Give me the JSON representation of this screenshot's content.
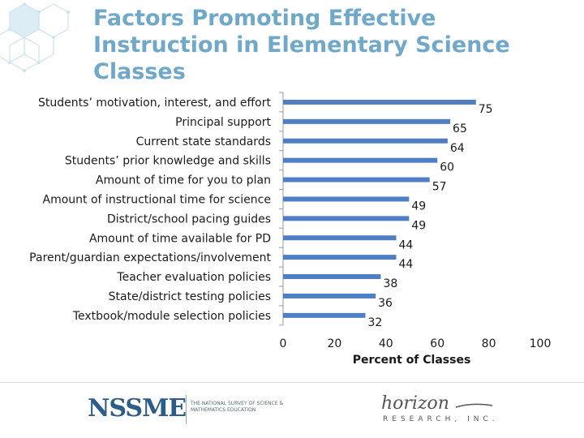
{
  "chart_data": {
    "type": "bar",
    "orientation": "horizontal",
    "title": "Factors Promoting Effective Instruction in Elementary Science Classes",
    "xlabel": "Percent of Classes",
    "xlim": [
      0,
      100
    ],
    "ticks": [
      "0",
      "20",
      "40",
      "60",
      "80",
      "100"
    ],
    "categories": [
      "Students’ motivation, interest, and effort",
      "Principal support",
      "Current state standards",
      "Students’ prior knowledge and skills",
      "Amount of time for you to plan",
      "Amount of instructional time for science",
      "District/school pacing guides",
      "Amount of time available for PD",
      "Parent/guardian expectations/involvement",
      "Teacher evaluation policies",
      "State/district testing policies",
      "Textbook/module selection policies"
    ],
    "values": [
      75,
      65,
      64,
      60,
      57,
      49,
      49,
      44,
      44,
      38,
      36,
      32
    ],
    "bar_color": "#4f7ec4",
    "grid": false,
    "legend": "none"
  },
  "footer": {
    "logo_left": "NSSME",
    "logo_left_subtitle": "THE NATIONAL SURVEY OF SCIENCE & MATHEMATICS EDUCATION",
    "logo_right": "horizon",
    "logo_right_subtitle": "RESEARCH, INC."
  }
}
